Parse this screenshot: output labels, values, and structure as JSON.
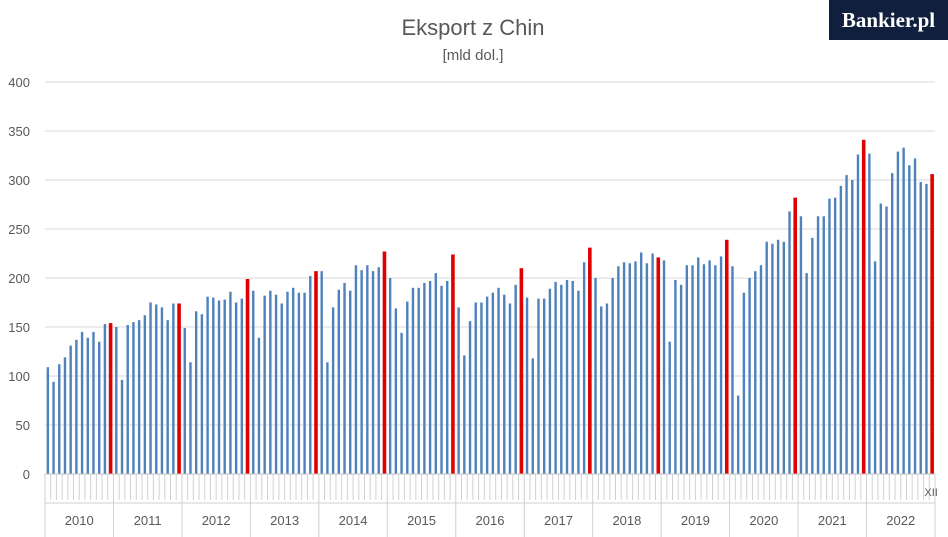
{
  "brand": {
    "logo_text": "Bankier.pl"
  },
  "colors": {
    "normal_bar": "#4f81bd",
    "december_bar": "#e00000",
    "grid": "#d9d9d9",
    "text": "#595959"
  },
  "chart_data": {
    "type": "bar",
    "title": "Eksport z Chin",
    "subtitle": "[mld dol.]",
    "ylim": [
      0,
      400
    ],
    "yticks": [
      0,
      50,
      100,
      150,
      200,
      250,
      300,
      350,
      400
    ],
    "grid": true,
    "years": [
      "2010",
      "2011",
      "2012",
      "2013",
      "2014",
      "2015",
      "2016",
      "2017",
      "2018",
      "2019",
      "2020",
      "2021",
      "2022"
    ],
    "last_month_label": "XII",
    "highlight": "December",
    "series": [
      {
        "values": [
          109,
          94,
          112,
          119,
          131,
          137,
          145,
          139,
          145,
          135,
          153,
          154,
          150,
          96,
          152,
          155,
          157,
          162,
          175,
          173,
          170,
          157,
          174,
          174,
          149,
          114,
          166,
          163,
          181,
          180,
          177,
          178,
          186,
          175,
          179,
          199,
          187,
          139,
          182,
          187,
          183,
          174,
          186,
          190,
          185,
          185,
          202,
          207,
          207,
          114,
          170,
          188,
          195,
          187,
          213,
          208,
          213,
          207,
          211,
          227,
          200,
          169,
          144,
          176,
          190,
          190,
          195,
          197,
          205,
          192,
          197,
          224,
          170,
          121,
          156,
          175,
          175,
          181,
          185,
          190,
          183,
          174,
          193,
          210,
          180,
          118,
          179,
          179,
          189,
          196,
          193,
          198,
          197,
          187,
          216,
          231,
          200,
          171,
          174,
          200,
          212,
          216,
          215,
          217,
          226,
          215,
          225,
          221,
          218,
          135,
          198,
          193,
          213,
          213,
          221,
          214,
          218,
          213,
          222,
          239,
          212,
          80,
          185,
          200,
          207,
          213,
          237,
          235,
          239,
          237,
          268,
          282,
          263,
          205,
          241,
          263,
          263,
          281,
          282,
          294,
          305,
          300,
          326,
          341,
          327,
          217,
          276,
          273,
          307,
          329,
          333,
          315,
          322,
          298,
          296,
          306
        ]
      }
    ]
  }
}
